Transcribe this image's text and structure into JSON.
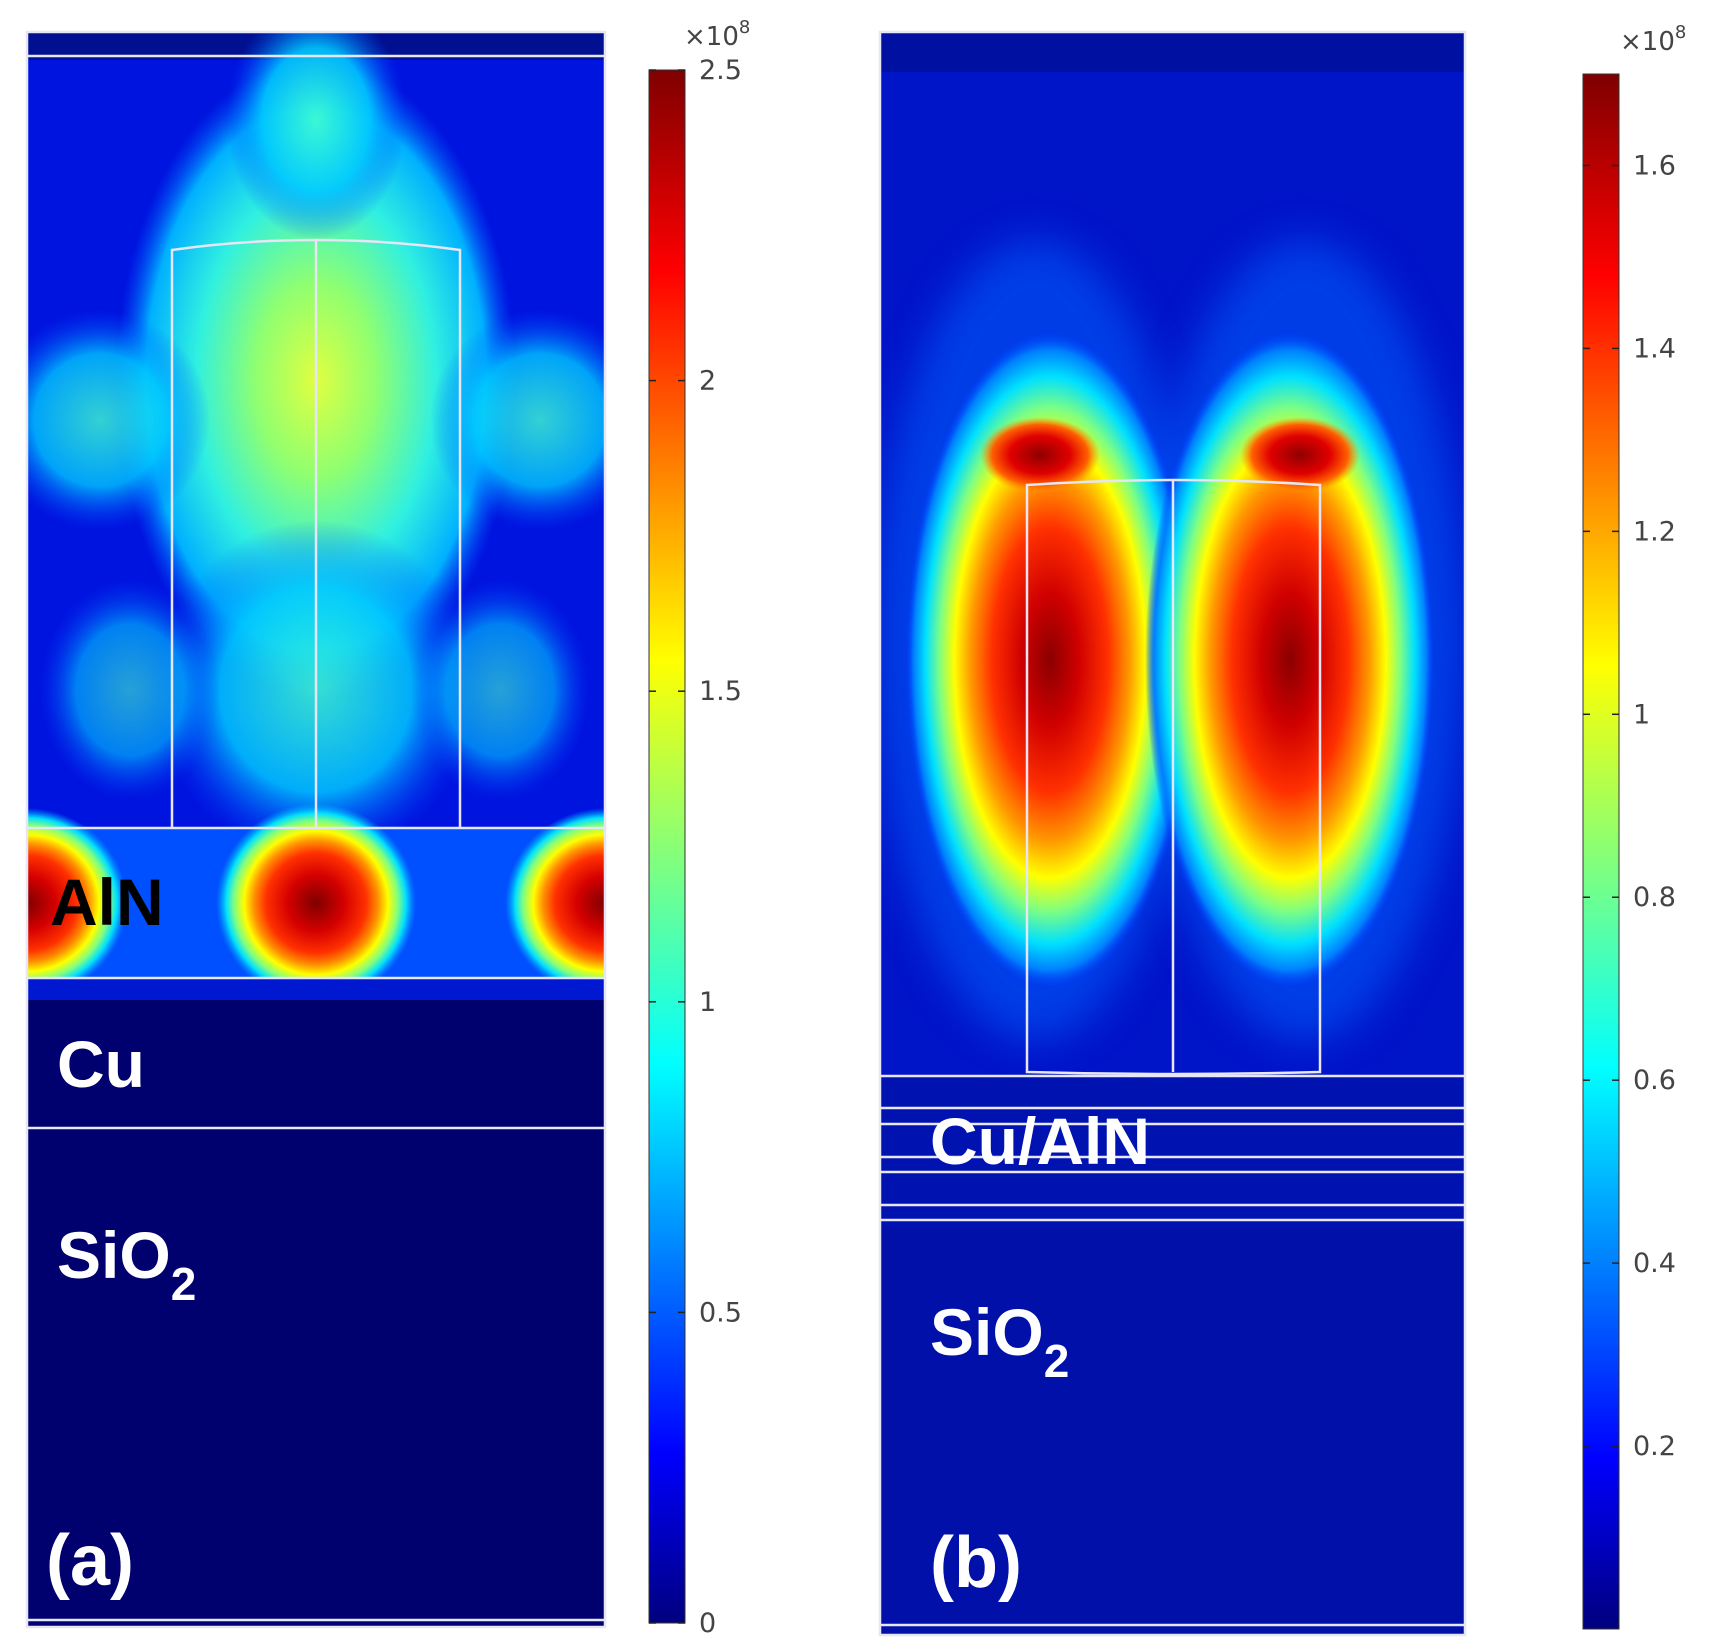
{
  "panel_a": {
    "tag": "(a)",
    "layers": {
      "aln": "AlN",
      "cu": "Cu",
      "sio2_base": "SiO",
      "sio2_sub": "2"
    },
    "colorbar": {
      "multiplier_base": "×10",
      "multiplier_exp": "8",
      "min": 0,
      "max": 2.5,
      "ticks": [
        "0",
        "0.5",
        "1",
        "1.5",
        "2",
        "2.5"
      ],
      "tick_values": [
        0,
        0.5,
        1,
        1.5,
        2,
        2.5
      ]
    }
  },
  "panel_b": {
    "tag": "(b)",
    "layers": {
      "multilayer": "Cu/AlN",
      "sio2_base": "SiO",
      "sio2_sub": "2"
    },
    "colorbar": {
      "multiplier_base": "×10",
      "multiplier_exp": "8",
      "min": 0,
      "max": 1.7,
      "ticks": [
        "0.2",
        "0.4",
        "0.6",
        "0.8",
        "1",
        "1.2",
        "1.4",
        "1.6"
      ],
      "tick_values": [
        0.2,
        0.4,
        0.6,
        0.8,
        1.0,
        1.2,
        1.4,
        1.6
      ]
    }
  },
  "colors": {
    "jet": [
      "#00007f",
      "#0000ff",
      "#007fff",
      "#00ffff",
      "#7fff7f",
      "#ffff00",
      "#ff7f00",
      "#ff0000",
      "#7f0000"
    ],
    "field_background": "#00006e",
    "outline": "#e6e6f5"
  }
}
